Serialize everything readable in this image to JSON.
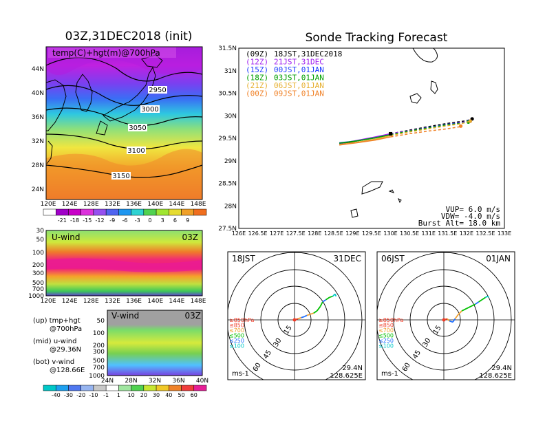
{
  "titles": {
    "left": "03Z,31DEC2018 (init)",
    "right": "Sonde Tracking Forecast"
  },
  "colors": {
    "t00": "#000000",
    "t12": "#a020f0",
    "t15": "#1e3cff",
    "t18": "#00a000",
    "t21": "#e6af2d",
    "t24": "#f08228",
    "c850": "#f03c28",
    "c700": "#f0a030",
    "c500": "#00c000",
    "c250": "#1e6eff",
    "c100": "#00c8c8"
  },
  "map_panel": {
    "label": "temp(C)+hgt(m)@700hPa",
    "ylabels": [
      "44N",
      "40N",
      "36N",
      "32N",
      "28N",
      "24N"
    ],
    "xlabels": [
      "120E",
      "124E",
      "128E",
      "132E",
      "136E",
      "140E",
      "144E",
      "148E"
    ],
    "contour_labels": [
      "2950",
      "3000",
      "3050",
      "3100",
      "3150"
    ],
    "colorbar_labels": [
      "-21",
      "-18",
      "-15",
      "-12",
      "-9",
      "-6",
      "-3",
      "0",
      "3",
      "6",
      "9"
    ]
  },
  "u_panel": {
    "label": "U-wind",
    "time": "03Z",
    "ylabels": [
      "30",
      "50",
      "100",
      "200",
      "300",
      "500",
      "700",
      "1000"
    ],
    "xlabels": [
      "120E",
      "124E",
      "128E",
      "132E",
      "136E",
      "140E",
      "144E",
      "148E"
    ]
  },
  "v_panel": {
    "label": "V-wind",
    "time": "03Z",
    "ylabels": [
      "50",
      "100",
      "200",
      "300",
      "500",
      "700",
      "1000"
    ],
    "xlabels": [
      "24N",
      "28N",
      "32N",
      "36N",
      "40N"
    ]
  },
  "notes": {
    "up1": "(up) tmp+hgt",
    "up2": "@700hPa",
    "mid1": "(mid) u-wind",
    "mid2": "@29.36N",
    "bot1": "(bot) v-wind",
    "bot2": "@128.66E"
  },
  "wind_colorbar_labels": [
    "-40",
    "-30",
    "-20",
    "-10",
    "-1",
    "1",
    "10",
    "20",
    "30",
    "40",
    "50",
    "60"
  ],
  "track_panel": {
    "legend": [
      {
        "key": "(09Z)",
        "text": "18JST,31DEC2018"
      },
      {
        "key": "(12Z)",
        "text": "21JST,31DEC"
      },
      {
        "key": "(15Z)",
        "text": "00JST,01JAN"
      },
      {
        "key": "(18Z)",
        "text": "03JST,01JAN"
      },
      {
        "key": "(21Z)",
        "text": "06JST,01JAN"
      },
      {
        "key": "(00Z)",
        "text": "09JST,01JAN"
      }
    ],
    "ylabels": [
      "31.5N",
      "31N",
      "30.5N",
      "30N",
      "29.5N",
      "29N",
      "28.5N",
      "28N",
      "27.5N"
    ],
    "xlabels": [
      "126E",
      "126.5E",
      "127E",
      "127.5E",
      "128E",
      "128.5E",
      "129E",
      "129.5E",
      "130E",
      "130.5E",
      "131E",
      "131.5E",
      "132E",
      "132.5E",
      "133E"
    ],
    "params": [
      "VUP= 6.0 m/s",
      "VDW= -4.0 m/s",
      "Burst Alt= 18.0 km"
    ]
  },
  "chart_data": {
    "type": "line",
    "title": "Sonde Tracking Forecast",
    "xlabel": "",
    "ylabel": "",
    "xlim": [
      126,
      133
    ],
    "ylim": [
      27.5,
      31.5
    ],
    "series": [
      {
        "name": "(09Z) 18JST,31DEC2018",
        "x": [
          128.65,
          129.1,
          129.6,
          130.0,
          130.5,
          131.0,
          131.5,
          132.0,
          132.15
        ],
        "y": [
          29.36,
          29.44,
          29.52,
          29.6,
          29.68,
          29.76,
          29.83,
          29.89,
          29.93
        ]
      },
      {
        "name": "(12Z) 21JST,31DEC",
        "x": [
          128.65,
          129.1,
          129.6,
          130.0,
          130.5,
          131.0,
          131.5,
          131.85,
          132.1
        ],
        "y": [
          29.38,
          29.45,
          29.53,
          29.6,
          29.67,
          29.74,
          29.81,
          29.85,
          29.88
        ]
      },
      {
        "name": "(15Z) 00JST,01JAN",
        "x": [
          128.65,
          129.1,
          129.6,
          130.0,
          130.5,
          131.0,
          131.5,
          131.85,
          132.05
        ],
        "y": [
          29.4,
          29.44,
          29.51,
          29.58,
          29.66,
          29.74,
          29.81,
          29.84,
          29.87
        ]
      },
      {
        "name": "(18Z) 03JST,01JAN",
        "x": [
          128.65,
          129.1,
          129.6,
          130.0,
          130.5,
          131.0,
          131.5,
          131.85,
          132.05
        ],
        "y": [
          29.39,
          29.44,
          29.51,
          29.58,
          29.66,
          29.73,
          29.8,
          29.83,
          29.86
        ]
      },
      {
        "name": "(21Z) 06JST,01JAN",
        "x": [
          128.65,
          129.1,
          129.6,
          130.0,
          130.5,
          131.0,
          131.5,
          131.85,
          132.1
        ],
        "y": [
          29.36,
          29.41,
          29.48,
          29.56,
          29.64,
          29.71,
          29.78,
          29.82,
          29.88
        ]
      },
      {
        "name": "(00Z) 09JST,01JAN",
        "x": [
          128.65,
          129.1,
          129.6,
          130.0,
          130.5,
          131.0,
          131.5,
          131.85,
          131.85
        ],
        "y": [
          29.35,
          29.4,
          29.46,
          29.53,
          29.6,
          29.66,
          29.71,
          29.76,
          29.77
        ]
      }
    ]
  },
  "polar_left": {
    "time": "18JST",
    "date": "31DEC",
    "levels": [
      "≥850hPa",
      "≤850",
      "≤700",
      "≤500",
      "≤250",
      "≤100"
    ],
    "rings": [
      "15",
      "30",
      "45",
      "60"
    ],
    "unit": "ms-1",
    "loc1": "29.4N",
    "loc2": "128.625E",
    "hodograph": [
      [
        0,
        0
      ],
      [
        3,
        1
      ],
      [
        6,
        2
      ],
      [
        9,
        3
      ],
      [
        11,
        4
      ],
      [
        14,
        5
      ],
      [
        17,
        6
      ],
      [
        20,
        8
      ],
      [
        23,
        12
      ],
      [
        25,
        16
      ],
      [
        28,
        18
      ],
      [
        31,
        20
      ],
      [
        34,
        21
      ],
      [
        36,
        23
      ],
      [
        37,
        21
      ]
    ]
  },
  "polar_right": {
    "time": "06JST",
    "date": "01JAN",
    "levels": [
      "≥850hPa",
      "≤850",
      "≤700",
      "≤500",
      "≤250",
      "≤100"
    ],
    "rings": [
      "15",
      "30",
      "45",
      "60"
    ],
    "unit": "ms-1",
    "loc1": "29.4N",
    "loc2": "128.625E",
    "hodograph": [
      [
        0,
        0
      ],
      [
        3,
        1
      ],
      [
        5,
        -1
      ],
      [
        8,
        -2
      ],
      [
        10,
        1
      ],
      [
        13,
        5
      ],
      [
        16,
        8
      ],
      [
        20,
        10
      ],
      [
        24,
        12
      ],
      [
        28,
        14
      ],
      [
        31,
        16
      ],
      [
        34,
        18
      ],
      [
        37,
        20
      ],
      [
        39,
        21
      ],
      [
        40,
        20
      ]
    ]
  }
}
